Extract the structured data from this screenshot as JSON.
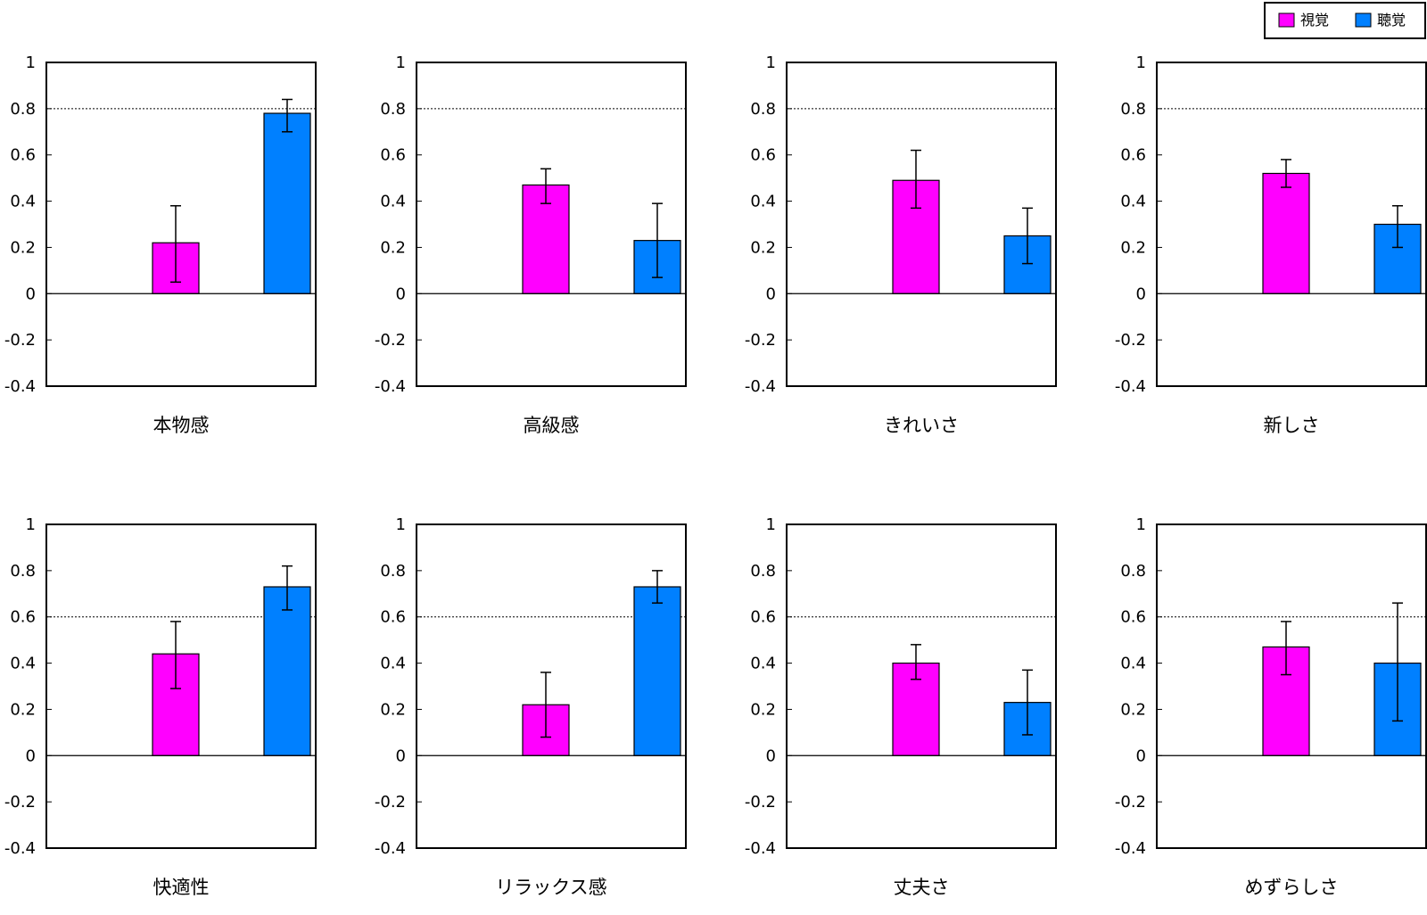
{
  "legend": {
    "items": [
      {
        "label": "視覚",
        "color": "#ff00ff"
      },
      {
        "label": "聴覚",
        "color": "#0080ff"
      }
    ],
    "placement": "top-right"
  },
  "chart_data": [
    {
      "type": "bar",
      "title": "本物感",
      "categories": [
        "視覚",
        "聴覚"
      ],
      "values": [
        0.22,
        0.78
      ],
      "error_low": [
        0.05,
        0.7
      ],
      "error_high": [
        0.38,
        0.84
      ],
      "reference_line": 0.8,
      "ylim": [
        -0.4,
        1
      ],
      "yticks": [
        "1",
        "0.8",
        "0.6",
        "0.4",
        "0.2",
        "0",
        "-0.2",
        "-0.4"
      ]
    },
    {
      "type": "bar",
      "title": "高級感",
      "categories": [
        "視覚",
        "聴覚"
      ],
      "values": [
        0.47,
        0.23
      ],
      "error_low": [
        0.39,
        0.07
      ],
      "error_high": [
        0.54,
        0.39
      ],
      "reference_line": 0.8,
      "ylim": [
        -0.4,
        1
      ],
      "yticks": [
        "1",
        "0.8",
        "0.6",
        "0.4",
        "0.2",
        "0",
        "-0.2",
        "-0.4"
      ]
    },
    {
      "type": "bar",
      "title": "きれいさ",
      "categories": [
        "視覚",
        "聴覚"
      ],
      "values": [
        0.49,
        0.25
      ],
      "error_low": [
        0.37,
        0.13
      ],
      "error_high": [
        0.62,
        0.37
      ],
      "reference_line": 0.8,
      "ylim": [
        -0.4,
        1
      ],
      "yticks": [
        "1",
        "0.8",
        "0.6",
        "0.4",
        "0.2",
        "0",
        "-0.2",
        "-0.4"
      ]
    },
    {
      "type": "bar",
      "title": "新しさ",
      "categories": [
        "視覚",
        "聴覚"
      ],
      "values": [
        0.52,
        0.3
      ],
      "error_low": [
        0.46,
        0.2
      ],
      "error_high": [
        0.58,
        0.38
      ],
      "reference_line": 0.8,
      "ylim": [
        -0.4,
        1
      ],
      "yticks": [
        "1",
        "0.8",
        "0.6",
        "0.4",
        "0.2",
        "0",
        "-0.2",
        "-0.4"
      ]
    },
    {
      "type": "bar",
      "title": "快適性",
      "categories": [
        "視覚",
        "聴覚"
      ],
      "values": [
        0.44,
        0.73
      ],
      "error_low": [
        0.29,
        0.63
      ],
      "error_high": [
        0.58,
        0.82
      ],
      "reference_line": 0.6,
      "ylim": [
        -0.4,
        1
      ],
      "yticks": [
        "1",
        "0.8",
        "0.6",
        "0.4",
        "0.2",
        "0",
        "-0.2",
        "-0.4"
      ]
    },
    {
      "type": "bar",
      "title": "リラックス感",
      "categories": [
        "視覚",
        "聴覚"
      ],
      "values": [
        0.22,
        0.73
      ],
      "error_low": [
        0.08,
        0.66
      ],
      "error_high": [
        0.36,
        0.8
      ],
      "reference_line": 0.6,
      "ylim": [
        -0.4,
        1
      ],
      "yticks": [
        "1",
        "0.8",
        "0.6",
        "0.4",
        "0.2",
        "0",
        "-0.2",
        "-0.4"
      ]
    },
    {
      "type": "bar",
      "title": "丈夫さ",
      "categories": [
        "視覚",
        "聴覚"
      ],
      "values": [
        0.4,
        0.23
      ],
      "error_low": [
        0.33,
        0.09
      ],
      "error_high": [
        0.48,
        0.37
      ],
      "reference_line": 0.6,
      "ylim": [
        -0.4,
        1
      ],
      "yticks": [
        "1",
        "0.8",
        "0.6",
        "0.4",
        "0.2",
        "0",
        "-0.2",
        "-0.4"
      ]
    },
    {
      "type": "bar",
      "title": "めずらしさ",
      "categories": [
        "視覚",
        "聴覚"
      ],
      "values": [
        0.47,
        0.4
      ],
      "error_low": [
        0.35,
        0.15
      ],
      "error_high": [
        0.58,
        0.66
      ],
      "reference_line": 0.6,
      "ylim": [
        -0.4,
        1
      ],
      "yticks": [
        "1",
        "0.8",
        "0.6",
        "0.4",
        "0.2",
        "0",
        "-0.2",
        "-0.4"
      ]
    }
  ]
}
